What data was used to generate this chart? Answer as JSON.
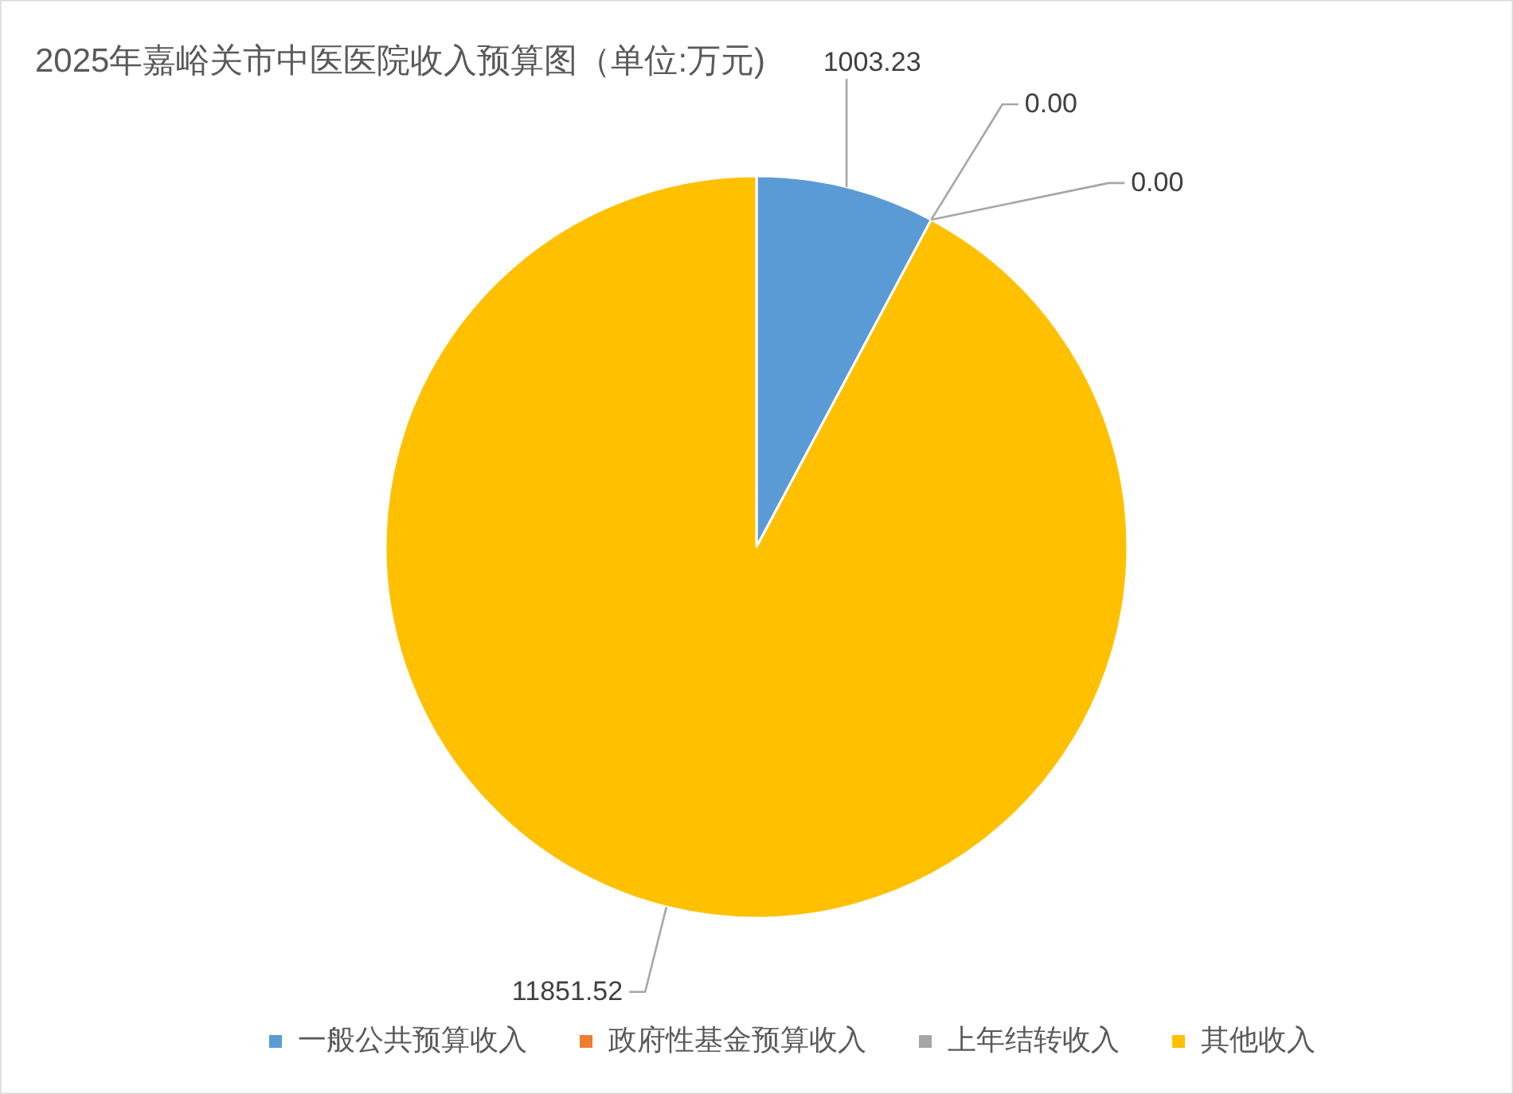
{
  "chart_data": {
    "type": "pie",
    "title": "2025年嘉峪关市中医医院收入预算图（单位:万元)",
    "categories": [
      "一般公共预算收入",
      "政府性基金预算收入",
      "上年结转收入",
      "其他收入"
    ],
    "values": [
      1003.23,
      0,
      0,
      11851.52
    ],
    "colors": [
      "#5b9bd5",
      "#ed7d31",
      "#a5a5a5",
      "#ffc000"
    ],
    "value_labels": [
      "1003.23",
      "0.00",
      "0.00",
      "11851.52"
    ],
    "legend": "bottom"
  }
}
